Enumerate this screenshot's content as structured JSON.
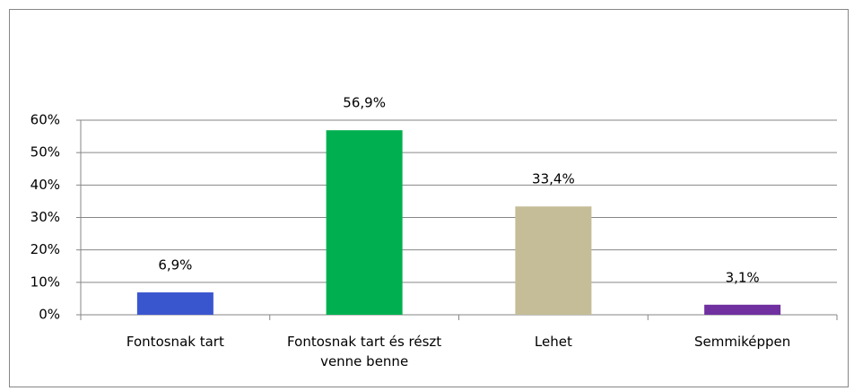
{
  "chart_data": {
    "type": "bar",
    "categories": [
      "Fontosnak tart",
      "Fontosnak tart és részt venne benne",
      "Lehet",
      "Semmiképpen"
    ],
    "values": [
      6.9,
      56.9,
      33.4,
      3.1
    ],
    "value_labels": [
      "6,9%",
      "56,9%",
      "33,4%",
      "3,1%"
    ],
    "colors": [
      "#3a56cf",
      "#00b050",
      "#c4bd97",
      "#7030a0"
    ],
    "ylim": [
      0,
      60
    ],
    "yticks": [
      {
        "value": 0,
        "label": "0%"
      },
      {
        "value": 10,
        "label": "10%"
      },
      {
        "value": 20,
        "label": "20%"
      },
      {
        "value": 30,
        "label": "30%"
      },
      {
        "value": 40,
        "label": "40%"
      },
      {
        "value": 50,
        "label": "50%"
      },
      {
        "value": 60,
        "label": "60%"
      }
    ],
    "grid": true
  }
}
